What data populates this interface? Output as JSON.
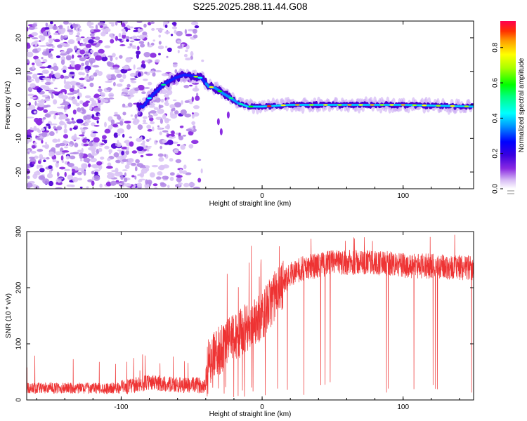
{
  "title": "S225.2025.288.11.44.G08",
  "chart_data": [
    {
      "type": "heatmap",
      "xlabel": "Height of straight line (km)",
      "ylabel": "Frequency (Hz)",
      "xlim": [
        -167,
        150
      ],
      "ylim": [
        -25,
        25
      ],
      "xticks": [
        -100,
        0,
        100
      ],
      "yticks": [
        -20,
        -10,
        0,
        10,
        20
      ],
      "colorbar": {
        "label": "Normalized spectral amplitude",
        "range": [
          0,
          0.95
        ],
        "ticks": [
          0.0,
          0.2,
          0.4,
          0.6,
          0.8
        ],
        "colors": [
          "#ffffff",
          "#c9a6f2",
          "#8a2be2",
          "#4b00d1",
          "#0000ff",
          "#00a0ff",
          "#00ffff",
          "#00ff80",
          "#00ff00",
          "#aaff00",
          "#ffff00",
          "#ffa000",
          "#ff3000",
          "#ff0050"
        ]
      },
      "ridge": [
        {
          "x": -85,
          "y": -1
        },
        {
          "x": -80,
          "y": 2
        },
        {
          "x": -75,
          "y": 4
        },
        {
          "x": -70,
          "y": 6
        },
        {
          "x": -62,
          "y": 8
        },
        {
          "x": -55,
          "y": 9
        },
        {
          "x": -48,
          "y": 8.5
        },
        {
          "x": -43,
          "y": 8
        },
        {
          "x": -38,
          "y": 5.5
        },
        {
          "x": -33,
          "y": 5
        },
        {
          "x": -28,
          "y": 3.5
        },
        {
          "x": -22,
          "y": 2
        },
        {
          "x": -17,
          "y": 0.5
        },
        {
          "x": -10,
          "y": -0.5
        },
        {
          "x": 0,
          "y": -0.5
        },
        {
          "x": 20,
          "y": 0
        },
        {
          "x": 60,
          "y": 0
        },
        {
          "x": 100,
          "y": 0
        },
        {
          "x": 150,
          "y": -0.5
        }
      ],
      "noise_region_x": [
        -167,
        -48
      ]
    },
    {
      "type": "line",
      "xlabel": "Height of straight line (km)",
      "ylabel": "SNR (10 * v/v)",
      "xlim": [
        -167,
        150
      ],
      "ylim": [
        0,
        300
      ],
      "xticks": [
        -100,
        0,
        100
      ],
      "yticks": [
        0,
        100,
        200,
        300
      ],
      "series": [
        {
          "name": "SNR",
          "color": "#ee3333",
          "trend_x": [
            -167,
            -100,
            -80,
            -60,
            -40,
            -38,
            -30,
            -20,
            -10,
            0,
            10,
            20,
            30,
            50,
            80,
            100,
            120,
            150
          ],
          "trend_y": [
            20,
            20,
            30,
            25,
            25,
            70,
            90,
            110,
            130,
            150,
            190,
            225,
            235,
            245,
            245,
            240,
            238,
            235
          ]
        }
      ]
    }
  ]
}
